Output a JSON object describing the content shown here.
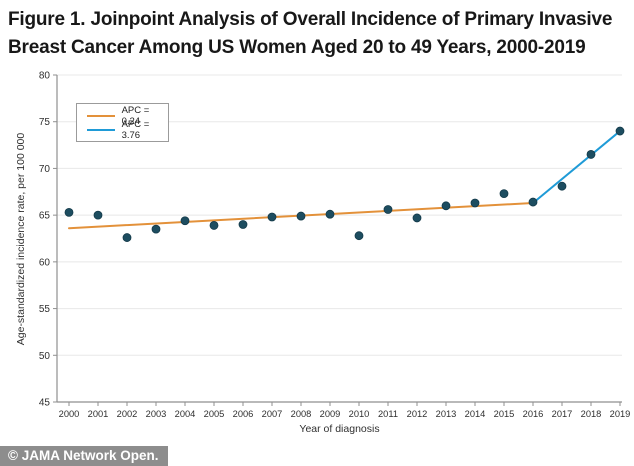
{
  "figure": {
    "title_line1": "Figure 1.  Joinpoint Analysis of Overall Incidence of Primary Invasive",
    "title_line2": "Breast Cancer Among US Women Aged 20 to 49 Years, 2000-2019"
  },
  "footer": {
    "credit": "© JAMA Network Open."
  },
  "chart_data": {
    "type": "scatter",
    "title": "Joinpoint Analysis of Overall Incidence of Primary Invasive Breast Cancer Among US Women Aged 20 to 49 Years, 2000-2019",
    "xlabel": "Year of diagnosis",
    "ylabel": "Age-standardized incidence rate, per 100 000",
    "x": [
      2000,
      2001,
      2002,
      2003,
      2004,
      2005,
      2006,
      2007,
      2008,
      2009,
      2010,
      2011,
      2012,
      2013,
      2014,
      2015,
      2016,
      2017,
      2018,
      2019
    ],
    "points": [
      65.3,
      65.0,
      62.6,
      63.5,
      64.4,
      63.9,
      64.0,
      64.8,
      64.9,
      65.1,
      62.8,
      65.6,
      64.7,
      66.0,
      66.3,
      67.3,
      66.4,
      68.1,
      71.5,
      74.0
    ],
    "ylim": [
      45,
      80
    ],
    "yticks": [
      45,
      50,
      55,
      60,
      65,
      70,
      75,
      80
    ],
    "grid": true,
    "legend_position": "upper-left",
    "legend": [
      {
        "label": "APC = 0.24",
        "color": "#E3913A"
      },
      {
        "label": "APC = 3.76",
        "color": "#1F9BD7"
      }
    ],
    "trend_segments": [
      {
        "name": "APC = 0.24",
        "color": "#E3913A",
        "x": [
          2000,
          2016
        ],
        "y": [
          63.6,
          66.3
        ]
      },
      {
        "name": "APC = 3.76",
        "color": "#1F9BD7",
        "x": [
          2016,
          2019
        ],
        "y": [
          66.3,
          74.0
        ]
      }
    ],
    "point_color": "#1D4D60",
    "axis_color": "#8f8f8f",
    "grid_color": "#e8e8e8"
  }
}
